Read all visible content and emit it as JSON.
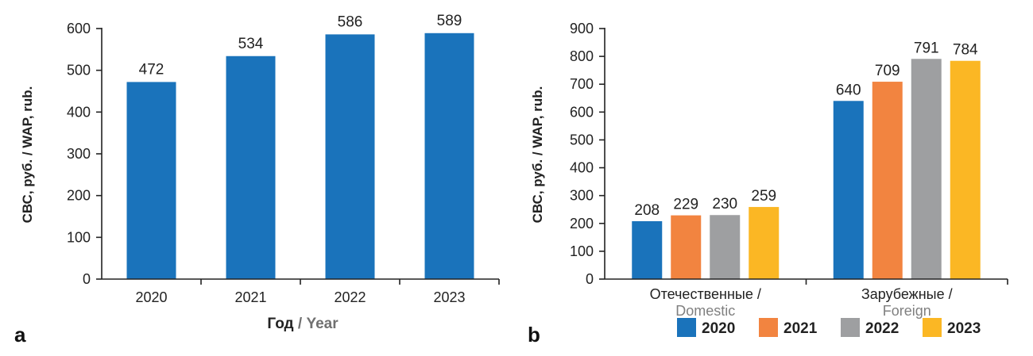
{
  "chart_data": [
    {
      "type": "bar",
      "panel_label": "a",
      "categories": [
        "2020",
        "2021",
        "2022",
        "2023"
      ],
      "values": [
        472,
        534,
        586,
        589
      ],
      "data_labels": [
        "472",
        "534",
        "586",
        "589"
      ],
      "ylabel": "СВС, руб. / WAP, rub.",
      "xlabel_ru": "Год",
      "xlabel_sep": " / ",
      "xlabel_en": "Year",
      "ylim": [
        0,
        600
      ],
      "yticks": [
        "0",
        "100",
        "200",
        "300",
        "400",
        "500",
        "600"
      ],
      "color": "#1a73bb"
    },
    {
      "type": "bar",
      "panel_label": "b",
      "categories": [
        {
          "ru": "Отечественные /",
          "en": "Domestic"
        },
        {
          "ru": "Зарубежные /",
          "en": "Foreign"
        }
      ],
      "series": [
        {
          "name": "2020",
          "values": [
            208,
            640
          ],
          "color": "#1a73bb"
        },
        {
          "name": "2021",
          "values": [
            229,
            709
          ],
          "color": "#f28440"
        },
        {
          "name": "2022",
          "values": [
            230,
            791
          ],
          "color": "#9e9fa1"
        },
        {
          "name": "2023",
          "values": [
            259,
            784
          ],
          "color": "#fbb724"
        }
      ],
      "ylabel": "СВС, руб. / WAP, rub.",
      "ylim": [
        0,
        900
      ],
      "yticks": [
        "0",
        "100",
        "200",
        "300",
        "400",
        "500",
        "600",
        "700",
        "800",
        "900"
      ],
      "legend": "bottom"
    }
  ]
}
